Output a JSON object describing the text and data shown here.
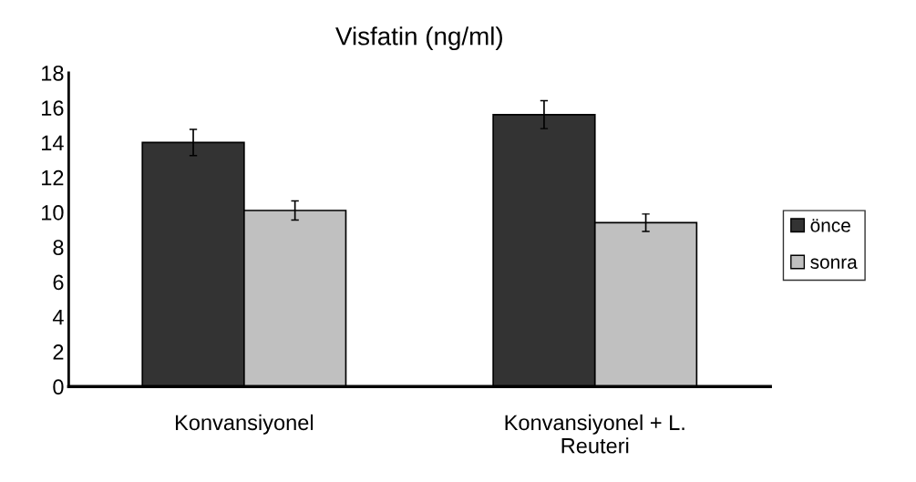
{
  "chart_data": {
    "type": "bar",
    "title": "Visfatin (ng/ml)",
    "categories": [
      "Konvansiyonel",
      "Konvansiyonel + L. Reuteri"
    ],
    "series": [
      {
        "name": "önce",
        "color": "#333333",
        "values": [
          14.0,
          15.6
        ],
        "errors": [
          0.75,
          0.8
        ]
      },
      {
        "name": "sonra",
        "color": "#c0c0c0",
        "values": [
          10.1,
          9.4
        ],
        "errors": [
          0.55,
          0.5
        ]
      }
    ],
    "ylim": [
      0,
      18
    ],
    "yticks": [
      0,
      2,
      4,
      6,
      8,
      10,
      12,
      14,
      16,
      18
    ],
    "grid": false,
    "legend": "right"
  }
}
